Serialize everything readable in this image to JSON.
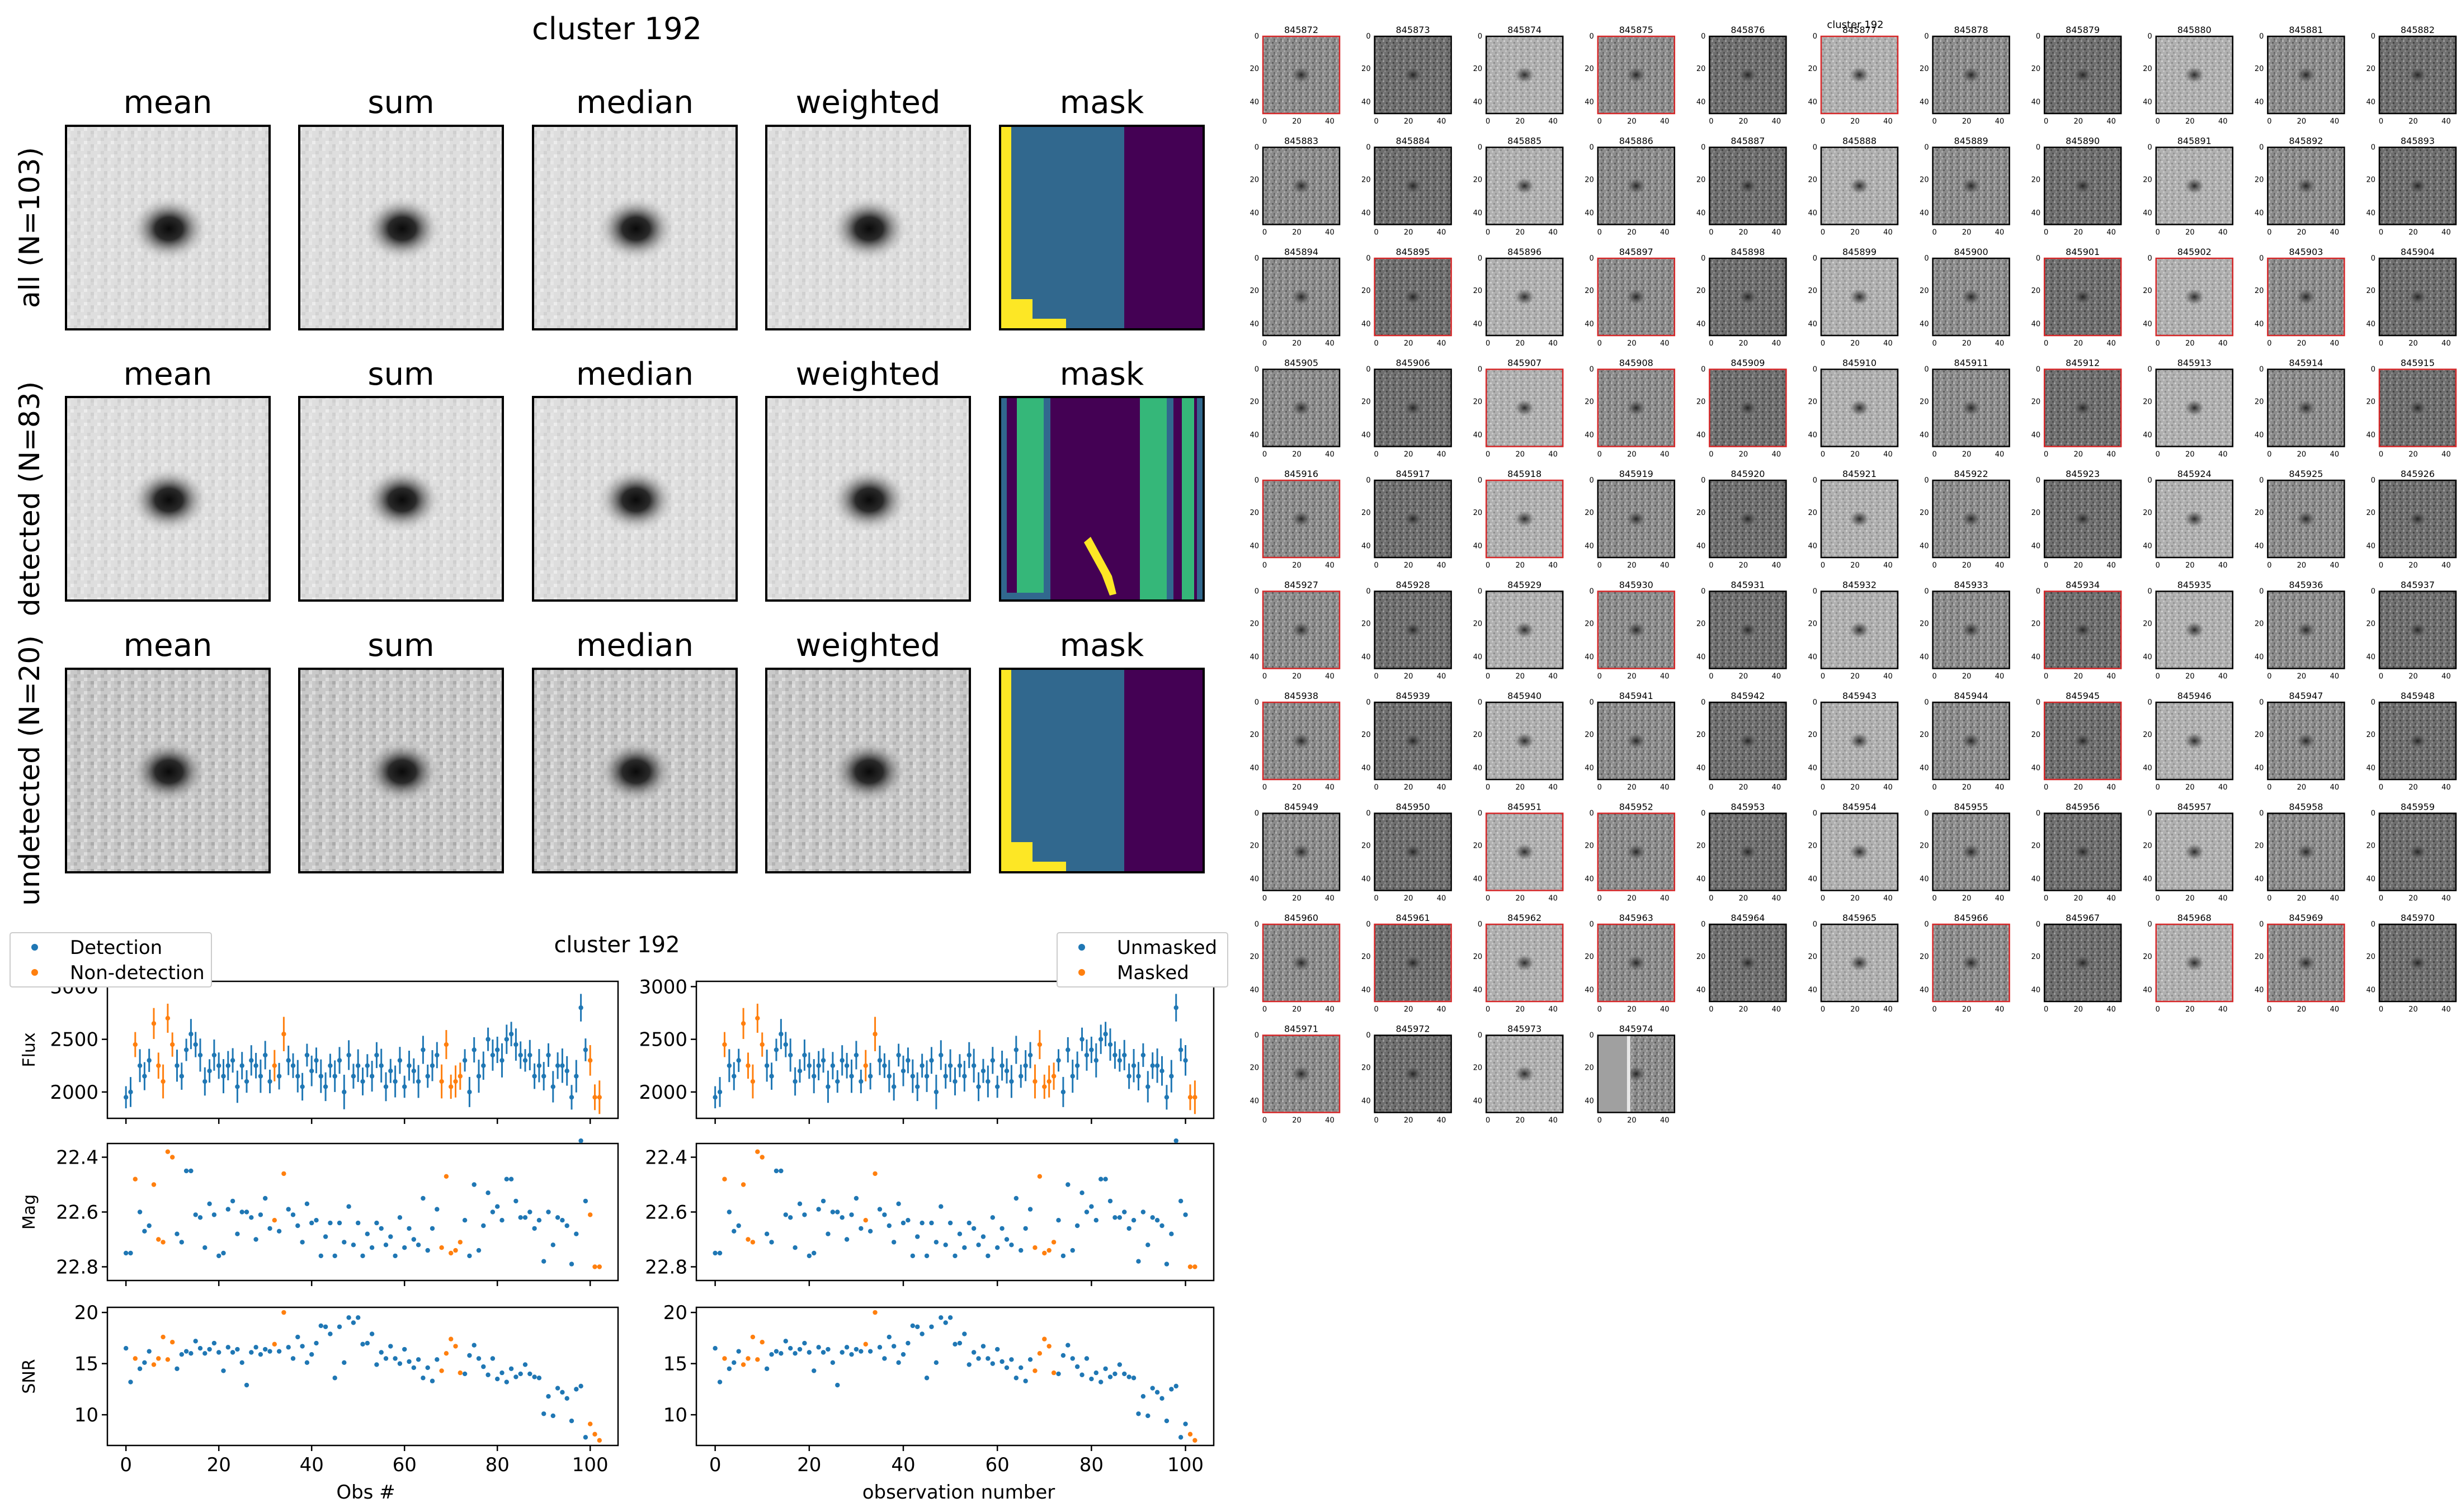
{
  "stacks": {
    "title": "cluster 192",
    "col_labels": [
      "mean",
      "sum",
      "median",
      "weighted",
      "mask"
    ],
    "row_labels": [
      "all (N=103)",
      "detected (N=83)",
      "undetected (N=20)"
    ]
  },
  "lightcurve": {
    "title": "cluster 192",
    "left_legend": [
      "Detection",
      "Non-detection"
    ],
    "right_legend": [
      "Unmasked",
      "Masked"
    ],
    "left_xlabel": "Obs #",
    "right_xlabel": "observation number",
    "ylabels": [
      "Flux",
      "Mag",
      "SNR"
    ]
  },
  "grid": {
    "title": "cluster 192",
    "ids": [
      "845872",
      "845873",
      "845874",
      "845875",
      "845876",
      "845877",
      "845878",
      "845879",
      "845880",
      "845881",
      "845882",
      "845883",
      "845884",
      "845885",
      "845886",
      "845887",
      "845888",
      "845889",
      "845890",
      "845891",
      "845892",
      "845893",
      "845894",
      "845895",
      "845896",
      "845897",
      "845898",
      "845899",
      "845900",
      "845901",
      "845902",
      "845903",
      "845904",
      "845905",
      "845906",
      "845907",
      "845908",
      "845909",
      "845910",
      "845911",
      "845912",
      "845913",
      "845914",
      "845915",
      "845916",
      "845917",
      "845918",
      "845919",
      "845920",
      "845921",
      "845922",
      "845923",
      "845924",
      "845925",
      "845926",
      "845927",
      "845928",
      "845929",
      "845930",
      "845931",
      "845932",
      "845933",
      "845934",
      "845935",
      "845936",
      "845937",
      "845938",
      "845939",
      "845940",
      "845941",
      "845942",
      "845943",
      "845944",
      "845945",
      "845946",
      "845947",
      "845948",
      "845949",
      "845950",
      "845951",
      "845952",
      "845953",
      "845954",
      "845955",
      "845956",
      "845957",
      "845958",
      "845959",
      "845960",
      "845961",
      "845962",
      "845963",
      "845964",
      "845965",
      "845966",
      "845967",
      "845968",
      "845969",
      "845970",
      "845971",
      "845972",
      "845973",
      "845974"
    ],
    "red_border_ids": [
      "845872",
      "845875",
      "845877",
      "845895",
      "845897",
      "845901",
      "845902",
      "845903",
      "845907",
      "845908",
      "845909",
      "845912",
      "845915",
      "845916",
      "845918",
      "845927",
      "845930",
      "845934",
      "845938",
      "845945",
      "845951",
      "845952",
      "845960",
      "845961",
      "845962",
      "845963",
      "845966",
      "845968",
      "845969",
      "845971"
    ],
    "ytick_labels": [
      "0",
      "20",
      "40"
    ],
    "xtick_labels": [
      "0",
      "20",
      "40"
    ]
  },
  "colors": {
    "detection": "#1f77b4",
    "nondetection": "#ff7f0e",
    "viridis_purple": "#440154",
    "viridis_blue": "#31688e",
    "viridis_green": "#35b779",
    "viridis_yellow": "#fde725",
    "red_border": "#d62728"
  },
  "chart_data": [
    {
      "type": "scatter",
      "panel": "flux-vs-obs (left)",
      "x": [
        0,
        1,
        2,
        3,
        4,
        5,
        6,
        7,
        8,
        9,
        10,
        11,
        12,
        13,
        14,
        15,
        16,
        17,
        18,
        19,
        20,
        21,
        22,
        23,
        24,
        25,
        26,
        27,
        28,
        29,
        30,
        31,
        32,
        33,
        34,
        35,
        36,
        37,
        38,
        39,
        40,
        41,
        42,
        43,
        44,
        45,
        46,
        47,
        48,
        49,
        50,
        51,
        52,
        53,
        54,
        55,
        56,
        57,
        58,
        59,
        60,
        61,
        62,
        63,
        64,
        65,
        66,
        67,
        68,
        69,
        70,
        71,
        72,
        73,
        74,
        75,
        76,
        77,
        78,
        79,
        80,
        81,
        82,
        83,
        84,
        85,
        86,
        87,
        88,
        89,
        90,
        91,
        92,
        93,
        94,
        95,
        96,
        97,
        98,
        99,
        100,
        101,
        102
      ],
      "y": [
        1950,
        2000,
        2450,
        2250,
        2150,
        2300,
        2650,
        2250,
        2100,
        2700,
        2450,
        2250,
        2150,
        2400,
        2550,
        2450,
        2350,
        2100,
        2200,
        2350,
        2250,
        2150,
        2250,
        2300,
        2050,
        2250,
        2100,
        2300,
        2250,
        2150,
        2350,
        2100,
        2250,
        2150,
        2550,
        2300,
        2250,
        2150,
        2050,
        2350,
        2200,
        2300,
        2150,
        2050,
        2250,
        2150,
        2300,
        2000,
        2350,
        2150,
        2250,
        2100,
        2250,
        2150,
        2350,
        2250,
        2050,
        2200,
        2100,
        2300,
        2050,
        2250,
        2200,
        2100,
        2400,
        2150,
        2250,
        2350,
        2100,
        2450,
        2050,
        2100,
        2150,
        2300,
        2000,
        2400,
        2150,
        2250,
        2500,
        2350,
        2400,
        2300,
        2500,
        2550,
        2450,
        2350,
        2300,
        2350,
        2150,
        2250,
        2150,
        2350,
        2050,
        2250,
        2250,
        2200,
        1950,
        2150,
        2800,
        2400,
        2300,
        1950,
        1950
      ],
      "masked_mask": [
        0,
        0,
        1,
        0,
        0,
        0,
        1,
        1,
        1,
        1,
        1,
        0,
        0,
        0,
        0,
        0,
        0,
        0,
        0,
        0,
        0,
        0,
        0,
        0,
        0,
        0,
        0,
        0,
        0,
        0,
        0,
        0,
        1,
        0,
        1,
        0,
        0,
        0,
        0,
        0,
        0,
        0,
        0,
        0,
        0,
        0,
        0,
        0,
        0,
        0,
        0,
        0,
        0,
        0,
        0,
        0,
        0,
        0,
        0,
        0,
        0,
        0,
        0,
        0,
        0,
        0,
        0,
        0,
        1,
        1,
        1,
        1,
        1,
        0,
        0,
        0,
        0,
        0,
        0,
        0,
        0,
        0,
        0,
        0,
        0,
        0,
        0,
        0,
        0,
        0,
        0,
        0,
        0,
        0,
        0,
        0,
        0,
        0,
        0,
        0,
        0,
        1,
        1
      ],
      "ylim": [
        1750,
        3050
      ],
      "xlim": [
        -4,
        106
      ],
      "yticks": [
        2000,
        2500,
        3000
      ]
    },
    {
      "type": "scatter",
      "panel": "mag-vs-obs (left)",
      "y": [
        22.75,
        22.75,
        22.48,
        22.6,
        22.67,
        22.65,
        22.5,
        22.7,
        22.71,
        22.38,
        22.4,
        22.68,
        22.71,
        22.45,
        22.45,
        22.61,
        22.62,
        22.73,
        22.57,
        22.61,
        22.76,
        22.75,
        22.59,
        22.56,
        22.68,
        22.6,
        22.6,
        22.62,
        22.7,
        22.61,
        22.55,
        22.66,
        22.63,
        22.67,
        22.46,
        22.59,
        22.61,
        22.65,
        22.71,
        22.57,
        22.64,
        22.63,
        22.76,
        22.69,
        22.64,
        22.76,
        22.64,
        22.71,
        22.58,
        22.72,
        22.64,
        22.76,
        22.68,
        22.73,
        22.64,
        22.66,
        22.72,
        22.69,
        22.76,
        22.62,
        22.73,
        22.66,
        22.7,
        22.72,
        22.55,
        22.74,
        22.66,
        22.59,
        22.73,
        22.47,
        22.75,
        22.74,
        22.71,
        22.63,
        22.76,
        22.5,
        22.74,
        22.65,
        22.53,
        22.6,
        22.58,
        22.63,
        22.48,
        22.48,
        22.56,
        22.62,
        22.62,
        22.6,
        22.66,
        22.63,
        22.78,
        22.6,
        22.72,
        22.62,
        22.63,
        22.65,
        22.79,
        22.68,
        22.34,
        22.56,
        22.61,
        22.8,
        22.8
      ],
      "ylim": [
        22.85,
        22.35
      ],
      "yticks": [
        22.4,
        22.6,
        22.8
      ],
      "y_inverted": true
    },
    {
      "type": "scatter",
      "panel": "snr-vs-obs (left)",
      "y": [
        16.5,
        13.2,
        15.5,
        14.5,
        15.1,
        16.2,
        14.9,
        15.5,
        17.6,
        15.4,
        17.1,
        14.5,
        15.9,
        16.2,
        16.0,
        17.2,
        16.5,
        16.0,
        16.4,
        17.0,
        16.1,
        14.3,
        16.6,
        16.1,
        16.4,
        15.1,
        12.9,
        16.1,
        16.6,
        15.9,
        16.4,
        16.2,
        16.9,
        16.2,
        20.0,
        16.6,
        15.5,
        17.6,
        16.7,
        15.1,
        15.9,
        17.0,
        18.7,
        18.6,
        17.9,
        13.6,
        18.6,
        15.1,
        19.5,
        19.0,
        19.5,
        16.9,
        17.0,
        17.9,
        14.9,
        16.1,
        15.5,
        16.7,
        15.5,
        15.0,
        16.4,
        15.2,
        14.6,
        15.4,
        13.6,
        14.6,
        13.3,
        15.4,
        14.3,
        16.0,
        17.4,
        16.7,
        14.1,
        14.0,
        15.8,
        16.8,
        15.5,
        14.7,
        13.9,
        15.5,
        13.5,
        14.1,
        13.2,
        14.5,
        13.7,
        14.0,
        14.9,
        14.0,
        13.7,
        13.6,
        10.1,
        11.8,
        9.9,
        12.6,
        12.2,
        11.6,
        9.4,
        12.5,
        12.8,
        7.8,
        9.1,
        8.1,
        7.5
      ],
      "ylim": [
        7,
        20.5
      ],
      "yticks": [
        10,
        15,
        20
      ],
      "xticks": [
        0,
        20,
        40,
        60,
        80,
        100
      ]
    }
  ]
}
